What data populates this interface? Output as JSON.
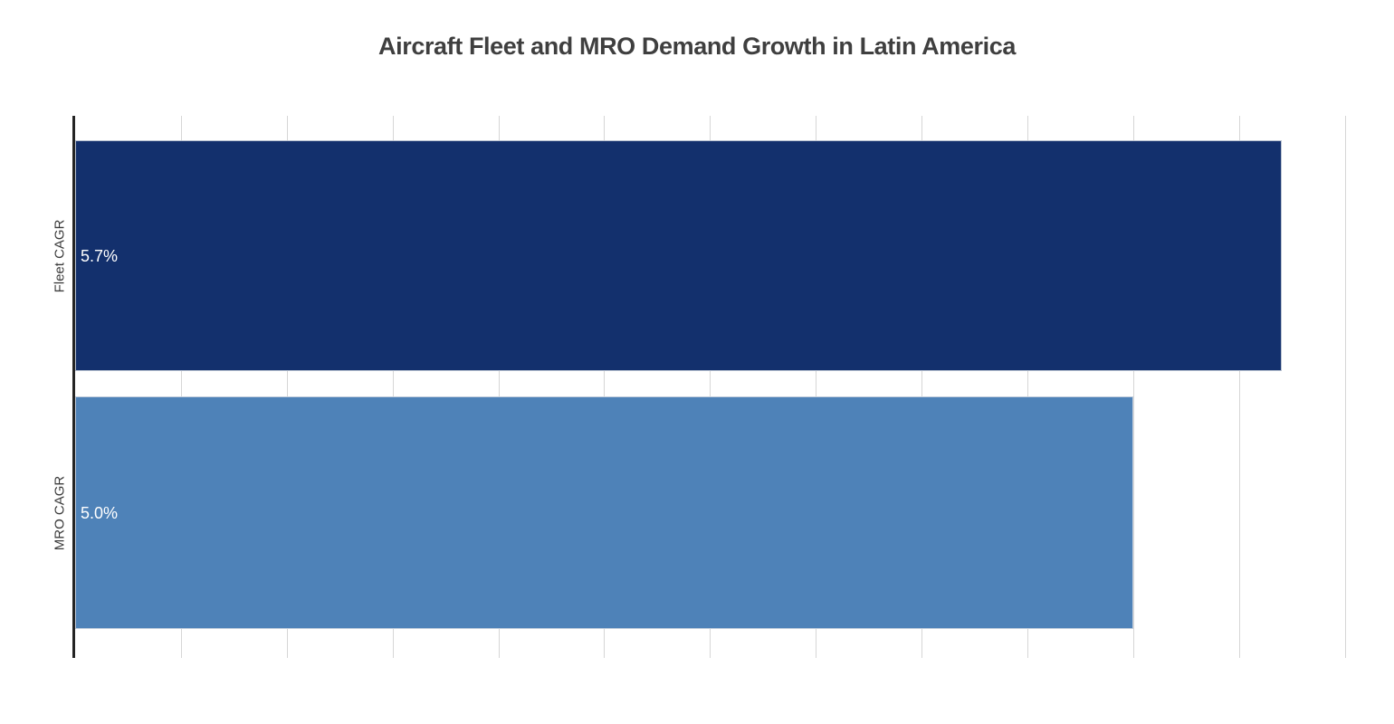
{
  "chart_data": {
    "type": "bar",
    "orientation": "horizontal",
    "title": "Aircraft Fleet and MRO Demand Growth in Latin America",
    "categories": [
      "Fleet CAGR",
      "MRO CAGR"
    ],
    "values": [
      5.7,
      5.0
    ],
    "value_labels": [
      "5.7%",
      "5.0%"
    ],
    "series_colors": [
      "#13306d",
      "#4e82b8"
    ],
    "xlabel": "",
    "ylabel": "",
    "xlim": [
      0,
      6.04
    ],
    "grid_dtick": 0.5,
    "grid": true,
    "x_tick_labels_visible": false,
    "legend": false,
    "value_label_position": "inside-left",
    "background_color": "#ffffff",
    "gridline_color": "#d6d6d6",
    "axis_line_color": "#242424",
    "title_color": "#3f3f3f",
    "category_label_color": "#3b3b3b",
    "value_label_color": "#ffffff"
  }
}
